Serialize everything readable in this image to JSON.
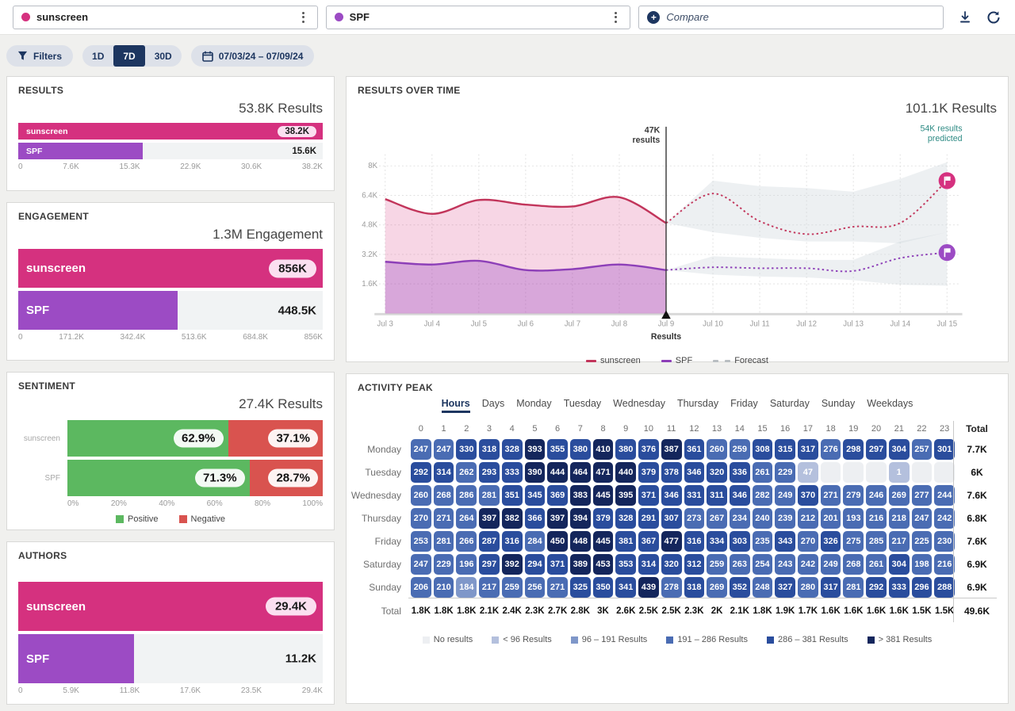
{
  "topbar": {
    "queries": [
      {
        "label": "sunscreen",
        "color": "#d5317f"
      },
      {
        "label": "SPF",
        "color": "#9c4bc4"
      }
    ],
    "compare_placeholder": "Compare"
  },
  "filterbar": {
    "filters_label": "Filters",
    "ranges": [
      "1D",
      "7D",
      "30D"
    ],
    "active_range": "7D",
    "date_range": "07/03/24 – 07/09/24"
  },
  "colors": {
    "sunscreen": "#d5317f",
    "spf": "#9c4bc4",
    "sunscreen_line": "#c2355b",
    "spf_line": "#8d3fb8",
    "navy": "#1d3660",
    "teal": "#2e8b84",
    "positive": "#5cb860",
    "negative": "#d9534f",
    "forecast_gray": "#b9bec2",
    "heatmap_scale": [
      "#edeff2",
      "#b4c0dd",
      "#7f97c9",
      "#4a6cb3",
      "#2a4d9d",
      "#14265c"
    ]
  },
  "panels": {
    "results": {
      "title": "RESULTS",
      "total": "53.8K Results"
    },
    "engagement": {
      "title": "ENGAGEMENT",
      "total": "1.3M Engagement"
    },
    "sentiment": {
      "title": "SENTIMENT",
      "total": "27.4K Results"
    },
    "authors": {
      "title": "AUTHORS"
    },
    "results_over_time": {
      "title": "RESULTS OVER TIME",
      "total": "101.1K Results"
    },
    "activity_peak": {
      "title": "ACTIVITY PEAK"
    }
  },
  "chart_data": [
    {
      "id": "results",
      "type": "bar",
      "categories": [
        "sunscreen",
        "SPF"
      ],
      "values": [
        38200,
        15600
      ],
      "value_labels": [
        "38.2K",
        "15.6K"
      ],
      "xmax": 38200,
      "axis": [
        "0",
        "7.6K",
        "15.3K",
        "22.9K",
        "30.6K",
        "38.2K"
      ]
    },
    {
      "id": "engagement",
      "type": "bar",
      "categories": [
        "sunscreen",
        "SPF"
      ],
      "values": [
        856000,
        448500
      ],
      "value_labels": [
        "856K",
        "448.5K"
      ],
      "xmax": 856000,
      "axis": [
        "0",
        "171.2K",
        "342.4K",
        "513.6K",
        "684.8K",
        "856K"
      ]
    },
    {
      "id": "sentiment",
      "type": "stacked-bar",
      "categories": [
        "sunscreen",
        "SPF"
      ],
      "series": [
        {
          "name": "Positive",
          "values": [
            62.9,
            71.3
          ]
        },
        {
          "name": "Negative",
          "values": [
            37.1,
            28.7
          ]
        }
      ],
      "value_labels": [
        [
          "62.9%",
          "37.1%"
        ],
        [
          "71.3%",
          "28.7%"
        ]
      ],
      "axis": [
        "0%",
        "20%",
        "40%",
        "60%",
        "80%",
        "100%"
      ]
    },
    {
      "id": "authors",
      "type": "bar",
      "categories": [
        "sunscreen",
        "SPF"
      ],
      "values": [
        29400,
        11200
      ],
      "value_labels": [
        "29.4K",
        "11.2K"
      ],
      "xmax": 29400,
      "axis": [
        "0",
        "5.9K",
        "11.8K",
        "17.6K",
        "23.5K",
        "29.4K"
      ]
    },
    {
      "id": "results_over_time",
      "type": "line",
      "x": [
        "Jul 3",
        "Jul 4",
        "Jul 5",
        "Jul 6",
        "Jul 7",
        "Jul 8",
        "Jul 9",
        "Jul 10",
        "Jul 11",
        "Jul 12",
        "Jul 13",
        "Jul 14",
        "Jul 15"
      ],
      "y_ticks": [
        "8K",
        "6.4K",
        "4.8K",
        "3.2K",
        "1.6K"
      ],
      "y_tick_values": [
        8000,
        6400,
        4800,
        3200,
        1600
      ],
      "ylim": [
        0,
        8800
      ],
      "now_index": 6,
      "annotations": {
        "now_line_1": "47K",
        "now_line_2": "results",
        "predicted_line_1": "54K results",
        "predicted_line_2": "predicted",
        "x_axis_label": "Results"
      },
      "series": [
        {
          "name": "sunscreen",
          "actual": [
            6200,
            5400,
            6150,
            5900,
            5800,
            6300,
            4900
          ],
          "forecast": [
            4900,
            6500,
            5000,
            4300,
            4700,
            4900,
            7200
          ],
          "band_upper": [
            4900,
            7200,
            6900,
            6800,
            6600,
            7300,
            8200
          ],
          "band_lower": [
            4900,
            4400,
            4100,
            3900,
            3900,
            3800,
            4400
          ]
        },
        {
          "name": "SPF",
          "actual": [
            2800,
            2650,
            2850,
            2350,
            2400,
            2650,
            2350
          ],
          "forecast": [
            2350,
            2500,
            2450,
            2450,
            2300,
            3000,
            3300
          ],
          "band_upper": [
            2350,
            3100,
            3000,
            2900,
            2900,
            3900,
            4400
          ],
          "band_lower": [
            2350,
            2100,
            2000,
            1950,
            1800,
            1550,
            1500
          ]
        }
      ],
      "legend": [
        "sunscreen",
        "SPF",
        "Forecast"
      ]
    },
    {
      "id": "activity_peak",
      "type": "heatmap",
      "tabs": [
        "Hours",
        "Days",
        "Monday",
        "Tuesday",
        "Wednesday",
        "Thursday",
        "Friday",
        "Saturday",
        "Sunday",
        "Weekdays"
      ],
      "active_tab": "Hours",
      "columns": [
        "0",
        "1",
        "2",
        "3",
        "4",
        "5",
        "6",
        "7",
        "8",
        "9",
        "10",
        "11",
        "12",
        "13",
        "14",
        "15",
        "16",
        "17",
        "18",
        "19",
        "20",
        "21",
        "22",
        "23"
      ],
      "total_label": "Total",
      "thresholds": [
        96,
        191,
        286,
        381
      ],
      "rows": [
        {
          "day": "Monday",
          "values": [
            247,
            247,
            330,
            318,
            328,
            393,
            355,
            380,
            410,
            380,
            376,
            387,
            361,
            260,
            259,
            308,
            315,
            317,
            276,
            298,
            297,
            304,
            257,
            301
          ],
          "total": "7.7K"
        },
        {
          "day": "Tuesday",
          "values": [
            292,
            314,
            262,
            293,
            333,
            390,
            444,
            464,
            471,
            440,
            379,
            378,
            346,
            320,
            336,
            261,
            229,
            47,
            null,
            null,
            null,
            1,
            null,
            null
          ],
          "total": "6K"
        },
        {
          "day": "Wednesday",
          "values": [
            260,
            268,
            286,
            281,
            351,
            345,
            369,
            383,
            445,
            395,
            371,
            346,
            331,
            311,
            346,
            282,
            249,
            370,
            271,
            279,
            246,
            269,
            277,
            244
          ],
          "total": "7.6K"
        },
        {
          "day": "Thursday",
          "values": [
            270,
            271,
            264,
            397,
            382,
            366,
            397,
            394,
            379,
            328,
            291,
            307,
            273,
            267,
            234,
            240,
            239,
            212,
            201,
            193,
            216,
            218,
            247,
            242
          ],
          "total": "6.8K"
        },
        {
          "day": "Friday",
          "values": [
            253,
            281,
            266,
            287,
            316,
            284,
            450,
            448,
            445,
            381,
            367,
            477,
            316,
            334,
            303,
            235,
            343,
            270,
            326,
            275,
            285,
            217,
            225,
            230
          ],
          "total": "7.6K"
        },
        {
          "day": "Saturday",
          "values": [
            247,
            229,
            196,
            297,
            392,
            294,
            371,
            389,
            453,
            353,
            314,
            320,
            312,
            259,
            263,
            254,
            243,
            242,
            249,
            268,
            261,
            304,
            198,
            216
          ],
          "total": "6.9K"
        },
        {
          "day": "Sunday",
          "values": [
            206,
            210,
            184,
            217,
            259,
            256,
            271,
            325,
            350,
            341,
            439,
            278,
            318,
            269,
            352,
            248,
            327,
            280,
            317,
            281,
            292,
            333,
            296,
            288
          ],
          "total": "6.9K"
        }
      ],
      "col_totals": [
        "1.8K",
        "1.8K",
        "1.8K",
        "2.1K",
        "2.4K",
        "2.3K",
        "2.7K",
        "2.8K",
        "3K",
        "2.6K",
        "2.5K",
        "2.5K",
        "2.3K",
        "2K",
        "2.1K",
        "1.8K",
        "1.9K",
        "1.7K",
        "1.6K",
        "1.6K",
        "1.6K",
        "1.6K",
        "1.5K",
        "1.5K"
      ],
      "grand_total": "49.6K",
      "legend": [
        {
          "label": "No results",
          "bucket": 0
        },
        {
          "label": "< 96 Results",
          "bucket": 1
        },
        {
          "label": "96 – 191 Results",
          "bucket": 2
        },
        {
          "label": "191 – 286 Results",
          "bucket": 3
        },
        {
          "label": "286 – 381 Results",
          "bucket": 4
        },
        {
          "label": "> 381 Results",
          "bucket": 5
        }
      ]
    }
  ]
}
